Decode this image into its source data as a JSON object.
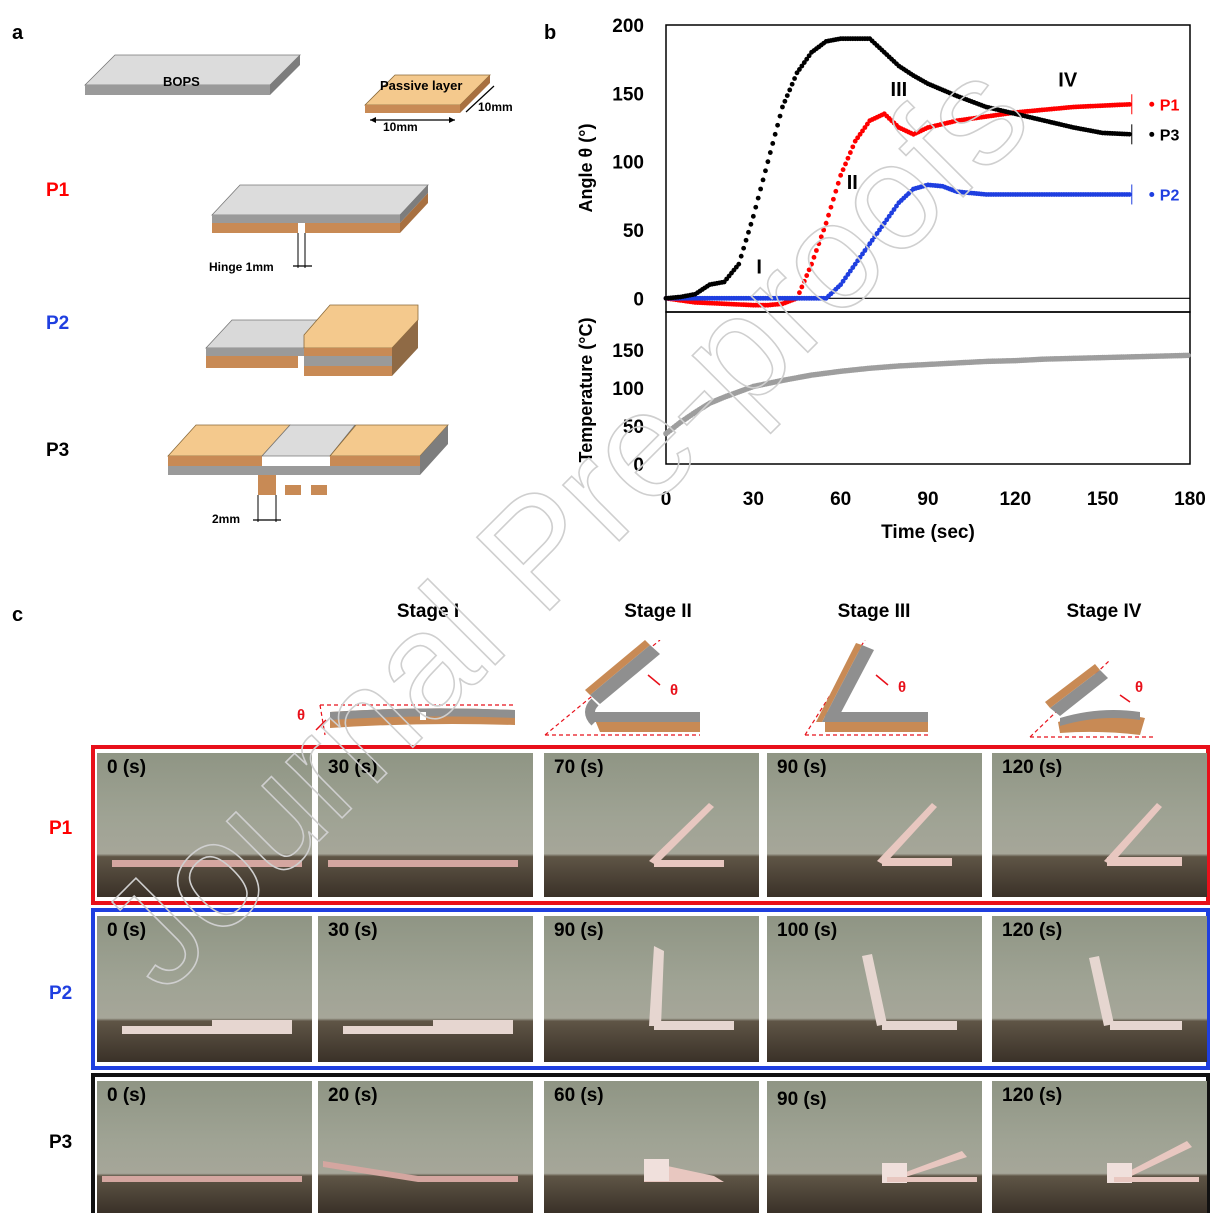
{
  "panels": {
    "a": "a",
    "b": "b",
    "c": "c"
  },
  "panel_a": {
    "bops_label": "BOPS",
    "passive_label": "Passive layer",
    "dim_width": "10mm",
    "dim_depth": "10mm",
    "hinge_label": "Hinge 1mm",
    "gap_label": "2mm",
    "rows": [
      {
        "name": "P1",
        "color": "#ff0000"
      },
      {
        "name": "P2",
        "color": "#1f3fe0"
      },
      {
        "name": "P3",
        "color": "#000000"
      }
    ]
  },
  "panel_c": {
    "stages": [
      "Stage I",
      "Stage II",
      "Stage III",
      "Stage IV"
    ],
    "theta": "θ",
    "rows": [
      {
        "name": "P1",
        "color": "#ff0000",
        "border": "#e8101a",
        "times": [
          "0 (s)",
          "30 (s)",
          "70 (s)",
          "90 (s)",
          "120 (s)"
        ]
      },
      {
        "name": "P2",
        "color": "#1f3fe0",
        "border": "#1f3fe0",
        "times": [
          "0 (s)",
          "30 (s)",
          "90 (s)",
          "100 (s)",
          "120 (s)"
        ]
      },
      {
        "name": "P3",
        "color": "#000000",
        "border": "#111111",
        "times": [
          "0 (s)",
          "20 (s)",
          "60 (s)",
          "90 (s)",
          "120 (s)"
        ]
      }
    ]
  },
  "watermark": "Journal Pre-proofs",
  "chart_data": [
    {
      "type": "scatter",
      "title": "",
      "xlabel": "",
      "ylabel": "Angle θ (°)",
      "xlim": [
        0,
        180
      ],
      "ylim": [
        0,
        200
      ],
      "yticks": [
        0,
        50,
        100,
        150,
        200
      ],
      "stage_labels": [
        {
          "text": "I",
          "x": 32,
          "y": 18
        },
        {
          "text": "II",
          "x": 64,
          "y": 80
        },
        {
          "text": "III",
          "x": 80,
          "y": 148
        },
        {
          "text": "IV",
          "x": 138,
          "y": 155
        }
      ],
      "series": [
        {
          "name": "P1",
          "color": "#ff0000",
          "x": [
            0,
            10,
            20,
            30,
            35,
            40,
            45,
            50,
            55,
            60,
            65,
            70,
            75,
            80,
            85,
            90,
            100,
            110,
            120,
            130,
            140,
            150,
            160
          ],
          "y": [
            0,
            -3,
            -4,
            -5,
            -5,
            -4,
            0,
            25,
            55,
            90,
            115,
            130,
            135,
            125,
            120,
            125,
            130,
            133,
            136,
            138,
            140,
            141,
            142
          ]
        },
        {
          "name": "P2",
          "color": "#1f3fe0",
          "x": [
            0,
            10,
            20,
            30,
            40,
            50,
            55,
            60,
            65,
            70,
            75,
            80,
            85,
            90,
            95,
            100,
            110,
            120,
            130,
            140,
            150,
            160
          ],
          "y": [
            0,
            0,
            0,
            0,
            0,
            0,
            0,
            10,
            25,
            40,
            55,
            70,
            80,
            83,
            82,
            78,
            76,
            76,
            76,
            76,
            76,
            76
          ]
        },
        {
          "name": "P3",
          "color": "#000000",
          "x": [
            0,
            5,
            10,
            15,
            20,
            25,
            30,
            35,
            40,
            45,
            50,
            55,
            60,
            65,
            70,
            75,
            80,
            85,
            90,
            100,
            110,
            120,
            130,
            140,
            150,
            160
          ],
          "y": [
            0,
            1,
            3,
            10,
            12,
            25,
            60,
            100,
            140,
            165,
            180,
            188,
            190,
            190,
            190,
            180,
            170,
            163,
            157,
            148,
            140,
            135,
            130,
            125,
            121,
            120
          ]
        }
      ],
      "series_end_labels": [
        "P1",
        "P3",
        "P2"
      ]
    },
    {
      "type": "scatter",
      "title": "",
      "xlabel": "Time (sec)",
      "ylabel": "Temperature (°C)",
      "xlim": [
        0,
        180
      ],
      "ylim": [
        0,
        200
      ],
      "xticks": [
        0,
        30,
        60,
        90,
        120,
        150,
        180
      ],
      "yticks": [
        0,
        50,
        100,
        150
      ],
      "series": [
        {
          "name": "",
          "color": "#9e9e9e",
          "x": [
            0,
            5,
            10,
            15,
            20,
            25,
            30,
            40,
            50,
            60,
            70,
            80,
            90,
            100,
            110,
            120,
            130,
            140,
            150,
            160,
            170,
            180
          ],
          "y": [
            40,
            55,
            68,
            80,
            88,
            95,
            102,
            110,
            117,
            122,
            126,
            129,
            131,
            133,
            135,
            136,
            138,
            139,
            140,
            141,
            142,
            143
          ]
        }
      ]
    }
  ]
}
